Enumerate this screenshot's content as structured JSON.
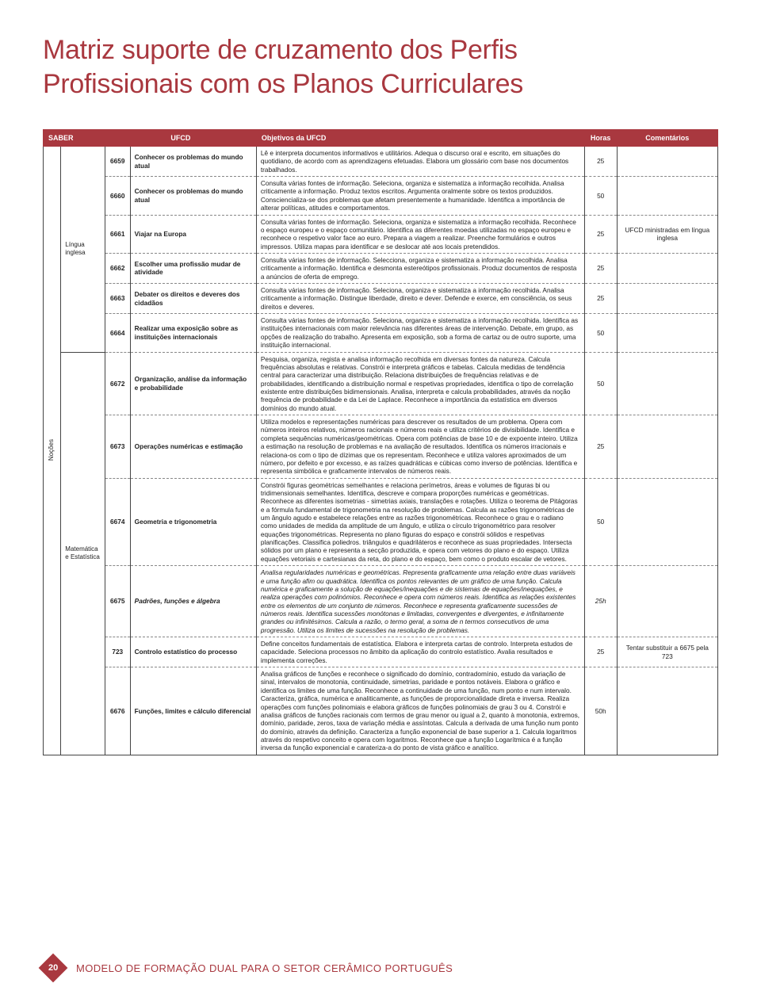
{
  "title_line1": "Matriz suporte de cruzamento dos Perfis",
  "title_line2": "Profissionais com os Planos Curriculares",
  "headers": {
    "saber": "SABER",
    "ufcd": "UFCD",
    "obj": "Objetivos da UFCD",
    "horas": "Horas",
    "cmt": "Comentários"
  },
  "group_label": "Noções",
  "saber1": "Língua inglesa",
  "saber2": "Matemática e Estatística",
  "rows1": [
    {
      "code": "6659",
      "ufcd": "Conhecer os problemas do mundo atual",
      "obj": "Lê e interpreta documentos informativos e utilitários. Adequa o discurso oral e escrito, em situações do quotidiano, de acordo com as aprendizagens efetuadas. Elabora um glossário com base nos documentos trabalhados.",
      "hrs": "25",
      "cmt": ""
    },
    {
      "code": "6660",
      "ufcd": "Conhecer os problemas do mundo atual",
      "obj": "Consulta várias fontes de informação. Seleciona, organiza e sistematiza a informação recolhida. Analisa criticamente a informação. Produz textos escritos. Argumenta oralmente sobre os textos produzidos. Consciencializa-se dos problemas que afetam presentemente a humanidade. Identifica a importância de alterar políticas, atitudes e comportamentos.",
      "hrs": "50",
      "cmt": ""
    },
    {
      "code": "6661",
      "ufcd": "Viajar na Europa",
      "obj": "Consulta várias fontes de informação. Seleciona, organiza e sistematiza a informação recolhida. Reconhece o espaço europeu e o espaço comunitário. Identifica as diferentes moedas utilizadas no espaço europeu e reconhece o respetivo valor face ao euro. Prepara a viagem a realizar. Preenche formulários e outros impressos. Utiliza mapas para identificar e se deslocar até aos locais pretendidos.",
      "hrs": "25",
      "cmt": "UFCD ministradas em língua inglesa"
    },
    {
      "code": "6662",
      "ufcd": "Escolher uma profissão mudar de atividade",
      "obj": "Consulta várias fontes de informação. Selecciona, organiza e sistematiza a informação recolhida. Analisa criticamente a informação. Identifica e desmonta estereótipos profissionais. Produz documentos de resposta a anúncios de oferta de emprego.",
      "hrs": "25",
      "cmt": ""
    },
    {
      "code": "6663",
      "ufcd": "Debater os direitos e deveres dos cidadãos",
      "obj": "Consulta várias fontes de informação. Seleciona, organiza e sistematiza a informação recolhida. Analisa criticamente a informação. Distingue liberdade, direito e dever. Defende e exerce, em consciência, os seus direitos e deveres.",
      "hrs": "25",
      "cmt": ""
    },
    {
      "code": "6664",
      "ufcd": "Realizar uma exposição sobre as instituições internacionais",
      "obj": "Consulta várias fontes de informação. Seleciona, organiza e sistematiza a informação recolhida. Identifica as instituições internacionais com maior relevância nas diferentes áreas de intervenção. Debate, em grupo, as opções de realização do trabalho. Apresenta em exposição, sob a forma de cartaz ou de outro suporte, uma instituição internacional.",
      "hrs": "50",
      "cmt": ""
    }
  ],
  "rows2": [
    {
      "code": "6672",
      "ufcd": "Organização, análise da informação e probabilidade",
      "obj": "Pesquisa, organiza, regista e analisa informação recolhida em diversas fontes da natureza. Calcula frequências absolutas e relativas. Constrói e interpreta gráficos e tabelas. Calcula medidas de tendência central para caracterizar uma distribuição. Relaciona distribuições de frequências relativas e de probabilidades, identificando a distribuição normal e respetivas propriedades, identifica o tipo de correlação existente entre distribuições bidimensionais. Analisa, interpreta e calcula probabilidades, através da noção frequência de probabilidade e da Lei de Laplace. Reconhece a importância da estatística em diversos domínios do mundo atual.",
      "hrs": "50",
      "cmt": ""
    },
    {
      "code": "6673",
      "ufcd": "Operações numéricas e estimação",
      "obj": "Utiliza modelos e representações numéricas para descrever os resultados de um problema. Opera com números inteiros relativos, números racionais e números reais e utiliza critérios de divisibilidade. Identifica e completa sequências numéricas/geométricas. Opera com potências de base 10 e de expoente inteiro. Utiliza a estimação na resolução de problemas e na avaliação de resultados. Identifica os números irracionais e relaciona-os com o tipo de dízimas que os representam. Reconhece e utiliza valores aproximados de um número, por defeito e por excesso, e as raízes quadráticas e cúbicas como inverso de potências. Identifica e representa simbólica e graficamente intervalos de números reais.",
      "hrs": "25",
      "cmt": ""
    },
    {
      "code": "6674",
      "ufcd": "Geometria e trigonometria",
      "obj": "Constrói figuras geométricas semelhantes e relaciona perímetros, áreas e volumes de figuras bi ou tridimensionais semelhantes. Identifica, descreve e compara proporções numéricas e geométricas. Reconhece as diferentes isometrias - simetrias axiais, translações e rotações. Utiliza o teorema de Pitágoras e a fórmula fundamental de trigonometria na resolução de problemas. Calcula as razões trigonométricas de um ângulo agudo e estabelece relações entre as razões trigonométricas. Reconhece o grau e o radiano como unidades de medida da amplitude de um ângulo, e utiliza o círculo trigonométrico para resolver equações trigonométricas. Representa no plano figuras do espaço e constrói sólidos e respetivas planificações. Classifica poliedros. triângulos e quadriláteros e reconhece as suas propriedades. Intersecta sólidos por um plano e representa a secção produzida, e opera com vetores do plano e do espaço. Utiliza equações vetoriais e cartesianas da reta, do plano e do espaço, bem como o produto escalar de vetores.",
      "hrs": "50",
      "cmt": ""
    },
    {
      "code": "6675",
      "ufcd": "Padrões, funções e álgebra",
      "obj": "Analisa regularidades numéricas e geométricas. Representa graficamente uma relação entre duas variáveis e uma função afim ou quadrática. Identifica os pontos relevantes de um gráfico de uma função. Calcula numérica e graficamente a solução de equações/inequações e de sistemas de equações/inequações, e realiza operações com polinómios. Reconhece e opera com números reais. Identifica as relações existentes entre os elementos de um conjunto de números. Reconhece e representa graficamente sucessões de números reais. Identifica sucessões monótonas e limitadas, convergentes e divergentes, e infinitamente grandes ou infinitésimos. Calcula a razão, o termo geral, a soma de n termos consecutivos de uma progressão. Utiliza os limites de sucessões na resolução de problemas.",
      "hrs": "25h",
      "cmt": "",
      "ital": true
    },
    {
      "code": "723",
      "ufcd": "Controlo estatístico do processo",
      "obj": "Define conceitos fundamentais de estatística. Elabora e interpreta cartas de controlo. Interpreta estudos de capacidade. Seleciona processos no âmbito da aplicação do controlo estatístico. Avalia resultados e implementa correções.",
      "hrs": "25",
      "cmt": "Tentar substituir a 6675 pela 723"
    },
    {
      "code": "6676",
      "ufcd": "Funções, limites e cálculo diferencial",
      "obj": "Analisa gráficos de funções e reconhece o significado do domínio, contradomínio, estudo da variação de sinal, intervalos de monotonia, continuidade, simetrias, paridade e pontos notáveis. Elabora o gráfico e identifica os limites de uma função. Reconhece a continuidade de uma função, num ponto e num intervalo. Caracteriza, gráfica, numérica e analiticamente, as funções de proporcionalidade direta e inversa. Realiza operações com funções polinomiais e elabora gráficos de funções polinomiais de grau 3 ou 4. Constrói e analisa gráficos de funções racionais com termos de grau menor ou igual a 2, quanto à monotonia, extremos, domínio, paridade, zeros, taxa de variação média e assíntotas. Calcula a derivada de uma função num ponto do domínio, através da definição. Caracteriza a função exponencial de base superior a 1. Calcula logaritmos através do respetivo conceito e opera com logaritmos. Reconhece que a função Logarítmica é a função inversa da função exponencial e carateriza-a do ponto de vista gráfico e analítico.",
      "hrs": "50h",
      "cmt": ""
    }
  ],
  "footer": {
    "page": "20",
    "text": "MODELO DE FORMAÇÃO DUAL PARA O SETOR CERÂMICO PORTUGUÊS"
  }
}
